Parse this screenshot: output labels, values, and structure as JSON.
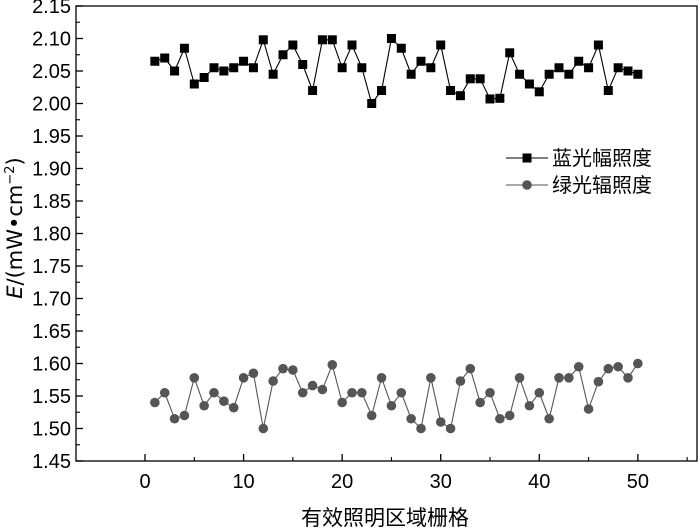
{
  "chart_data": {
    "type": "line",
    "title": "",
    "xlabel": "有效照明区域栅格",
    "ylabel": {
      "symbol": "E",
      "unit": "/(mW•cm",
      "exponent": "−2",
      "close": ")"
    },
    "xlim": [
      -7,
      56
    ],
    "ylim": [
      1.45,
      2.15
    ],
    "x_ticks": [
      0,
      10,
      20,
      30,
      40,
      50
    ],
    "y_ticks": [
      1.45,
      1.5,
      1.55,
      1.6,
      1.65,
      1.7,
      1.75,
      1.8,
      1.85,
      1.9,
      1.95,
      2.0,
      2.05,
      2.1,
      2.15
    ],
    "y_tick_labels": [
      "1.45",
      "1.50",
      "1.55",
      "1.60",
      "1.65",
      "1.70",
      "1.75",
      "1.80",
      "1.85",
      "1.90",
      "1.95",
      "2.00",
      "2.05",
      "2.10",
      "2.15"
    ],
    "x_tick_labels": [
      "0",
      "10",
      "20",
      "30",
      "40",
      "50"
    ],
    "legend_position": "right-middle",
    "grid": false,
    "x": [
      1,
      2,
      3,
      4,
      5,
      6,
      7,
      8,
      9,
      10,
      11,
      12,
      13,
      14,
      15,
      16,
      17,
      18,
      19,
      20,
      21,
      22,
      23,
      24,
      25,
      26,
      27,
      28,
      29,
      30,
      31,
      32,
      33,
      34,
      35,
      36,
      37,
      38,
      39,
      40,
      41,
      42,
      43,
      44,
      45,
      46,
      47,
      48,
      49,
      50
    ],
    "series": [
      {
        "name": "蓝光幅照度",
        "marker": "square",
        "color": "#000000",
        "values": [
          2.065,
          2.07,
          2.05,
          2.085,
          2.03,
          2.04,
          2.055,
          2.05,
          2.055,
          2.065,
          2.055,
          2.098,
          2.045,
          2.075,
          2.09,
          2.06,
          2.02,
          2.098,
          2.098,
          2.055,
          2.09,
          2.055,
          2.0,
          2.02,
          2.1,
          2.085,
          2.045,
          2.065,
          2.055,
          2.09,
          2.02,
          2.012,
          2.038,
          2.038,
          2.007,
          2.008,
          2.078,
          2.045,
          2.03,
          2.018,
          2.045,
          2.055,
          2.045,
          2.065,
          2.055,
          2.09,
          2.02,
          2.055,
          2.05,
          2.045
        ]
      },
      {
        "name": "绿光辐照度",
        "marker": "circle",
        "color": "#555555",
        "values": [
          1.54,
          1.555,
          1.515,
          1.52,
          1.578,
          1.535,
          1.555,
          1.542,
          1.532,
          1.578,
          1.585,
          1.5,
          1.573,
          1.592,
          1.59,
          1.555,
          1.566,
          1.56,
          1.598,
          1.54,
          1.555,
          1.555,
          1.52,
          1.578,
          1.535,
          1.555,
          1.515,
          1.5,
          1.578,
          1.51,
          1.5,
          1.573,
          1.592,
          1.54,
          1.555,
          1.515,
          1.52,
          1.578,
          1.535,
          1.555,
          1.515,
          1.578,
          1.578,
          1.595,
          1.53,
          1.572,
          1.592,
          1.595,
          1.578,
          1.6
        ]
      }
    ]
  }
}
